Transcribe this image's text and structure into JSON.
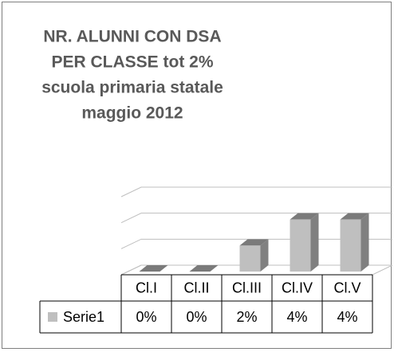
{
  "chart_data": {
    "type": "bar3d",
    "title": [
      "NR. ALUNNI CON DSA",
      "PER CLASSE tot 2%",
      "scuola primaria statale",
      "maggio 2012"
    ],
    "categories": [
      "Cl.I",
      "Cl.II",
      "Cl.III",
      "Cl.IV",
      "Cl.V"
    ],
    "series": [
      {
        "name": "Serie1",
        "color": "#bfbfbf",
        "values": [
          0,
          0,
          2,
          4,
          4
        ],
        "value_labels": [
          "0%",
          "0%",
          "2%",
          "4%",
          "4%"
        ]
      }
    ],
    "ylim": [
      0,
      6
    ],
    "yticks": [
      0,
      2,
      4,
      6
    ],
    "grid": true
  }
}
